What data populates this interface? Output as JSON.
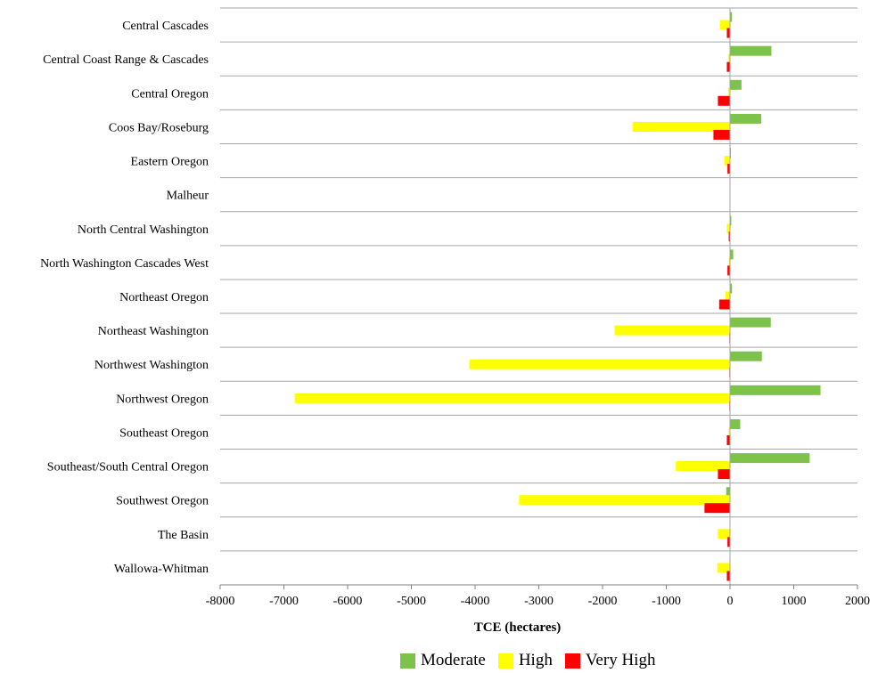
{
  "chart_data": {
    "type": "bar",
    "orientation": "horizontal",
    "categories": [
      "Central Cascades",
      "Central Coast Range & Cascades",
      "Central Oregon",
      "Coos Bay/Roseburg",
      "Eastern Oregon",
      "Malheur",
      "North Central Washington",
      "North Washington Cascades West",
      "Northeast Oregon",
      "Northeast Washington",
      "Northwest  Washington",
      "Northwest Oregon",
      "Southeast Oregon",
      "Southeast/South Central Oregon",
      "Southwest Oregon",
      "The Basin",
      "Wallowa-Whitman"
    ],
    "series": [
      {
        "name": "Moderate",
        "color": "#7DC34A",
        "values": [
          30,
          650,
          180,
          490,
          10,
          0,
          20,
          50,
          30,
          640,
          500,
          1420,
          160,
          1250,
          -60,
          0,
          0
        ]
      },
      {
        "name": "High",
        "color": "#FFFF00",
        "values": [
          -160,
          -30,
          -30,
          -1530,
          -90,
          0,
          -50,
          -20,
          -70,
          -1810,
          -4090,
          -6830,
          -20,
          -850,
          -3310,
          -190,
          -200
        ]
      },
      {
        "name": "Very High",
        "color": "#FF0000",
        "values": [
          -50,
          -50,
          -190,
          -260,
          -40,
          0,
          -20,
          -40,
          -170,
          -10,
          -10,
          -10,
          -50,
          -190,
          -400,
          -40,
          -50
        ]
      }
    ],
    "xlabel": "TCE (hectares)",
    "xlim": [
      -8000,
      2000
    ],
    "xticks": [
      "-8000",
      "-7000",
      "-6000",
      "-5000",
      "-4000",
      "-3000",
      "-2000",
      "-1000",
      "0",
      "1000",
      "2000"
    ],
    "grid": "horizontal separators between categories",
    "legend_position": "bottom-center"
  }
}
